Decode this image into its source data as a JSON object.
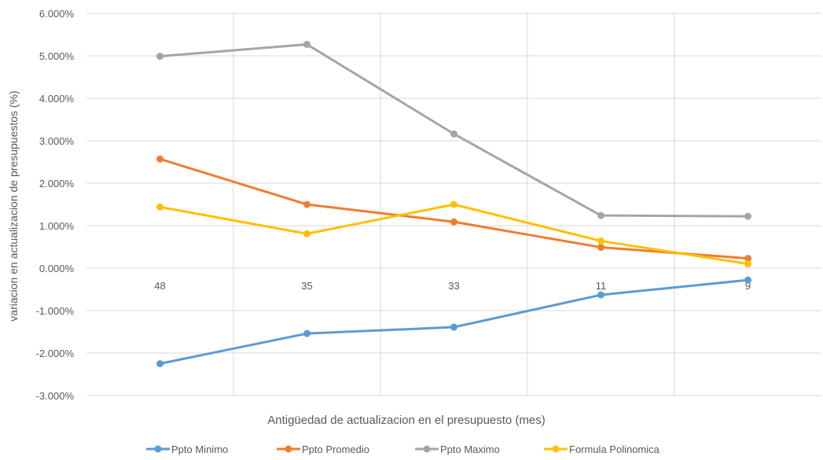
{
  "chart_data": {
    "type": "line",
    "categories": [
      "48",
      "35",
      "33",
      "11",
      "9"
    ],
    "ylabel": "variacion en actualizacion de presupuestos (%)",
    "xlabel": "Antigüedad de actualizacion en el presupuesto (mes)",
    "ylim": [
      -3,
      6
    ],
    "yticks": [
      "6.000%",
      "5.000%",
      "4.000%",
      "3.000%",
      "2.000%",
      "1.000%",
      "0.000%",
      "-1.000%",
      "-2.000%",
      "-3.000%"
    ],
    "grid": true,
    "legend_position": "bottom",
    "series": [
      {
        "name": "Ppto Minimo",
        "color": "#5b9bd5",
        "values": [
          -2.25,
          -1.54,
          -1.39,
          -0.63,
          -0.28
        ]
      },
      {
        "name": "Ppto Promedio",
        "color": "#ed7d31",
        "values": [
          2.57,
          1.5,
          1.09,
          0.49,
          0.23
        ]
      },
      {
        "name": "Ppto Maximo",
        "color": "#a5a5a5",
        "values": [
          4.99,
          5.27,
          3.16,
          1.24,
          1.22
        ]
      },
      {
        "name": "Formula Polinomica",
        "color": "#ffc000",
        "values": [
          1.44,
          0.81,
          1.5,
          0.64,
          0.1
        ]
      }
    ]
  }
}
